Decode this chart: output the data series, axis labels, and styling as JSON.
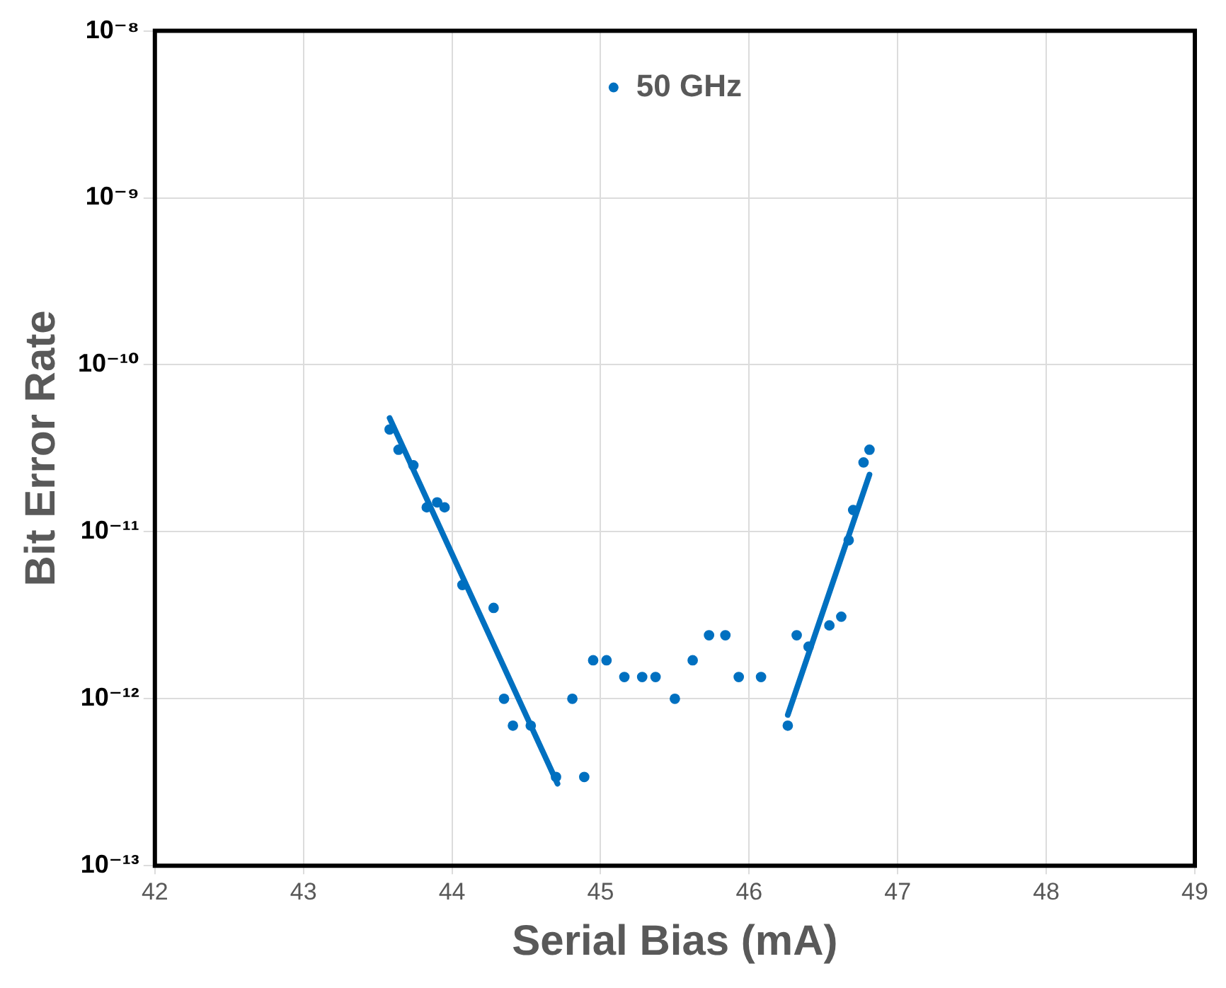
{
  "chart_data": {
    "type": "scatter",
    "xlabel": "Serial Bias (mA)",
    "ylabel": "Bit Error Rate",
    "log": "y",
    "grid": true,
    "legend": "top",
    "marker": "circle",
    "xlim": [
      42,
      49
    ],
    "xticks": [
      42,
      43,
      44,
      45,
      46,
      47,
      48,
      49
    ],
    "ylim": [
      1e-13,
      1e-08
    ],
    "yticks": [
      {
        "value": 1e-13,
        "label": "10⁻¹³"
      },
      {
        "value": 1e-12,
        "label": "10⁻¹²"
      },
      {
        "value": 1e-11,
        "label": "10⁻¹¹"
      },
      {
        "value": 1e-10,
        "label": "10⁻¹⁰"
      },
      {
        "value": 1e-09,
        "label": "10⁻⁹"
      },
      {
        "value": 1e-08,
        "label": "10⁻⁸"
      }
    ],
    "series": [
      {
        "name": "50 GHz",
        "color": "#0070c0",
        "x": [
          43.58,
          43.64,
          43.74,
          43.83,
          43.9,
          43.95,
          44.07,
          44.28,
          44.35,
          44.41,
          44.53,
          44.7,
          44.81,
          44.89,
          44.95,
          45.04,
          45.16,
          45.28,
          45.37,
          45.5,
          45.62,
          45.73,
          45.84,
          45.93,
          46.08,
          46.26,
          46.32,
          46.4,
          46.54,
          46.62,
          46.67,
          46.7,
          46.77,
          46.81
        ],
        "values": [
          4.1e-11,
          3.1e-11,
          2.5e-11,
          1.4e-11,
          1.5e-11,
          1.4e-11,
          4.8e-12,
          3.5e-12,
          1e-12,
          6.9e-13,
          6.9e-13,
          3.4e-13,
          1e-12,
          3.4e-13,
          1.7e-12,
          1.7e-12,
          1.35e-12,
          1.35e-12,
          1.35e-12,
          1e-12,
          1.7e-12,
          2.4e-12,
          2.4e-12,
          1.35e-12,
          1.35e-12,
          6.9e-13,
          2.4e-12,
          2.05e-12,
          2.75e-12,
          3.1e-12,
          8.9e-12,
          1.35e-11,
          2.6e-11,
          3.1e-11
        ]
      },
      {
        "type": "line",
        "marker": "none",
        "color": "#0070c0",
        "x": [
          43.58,
          44.71
        ],
        "values": [
          4.8e-11,
          3.1e-13
        ]
      },
      {
        "type": "line",
        "marker": "none",
        "color": "#0070c0",
        "x": [
          46.26,
          46.81
        ],
        "values": [
          8e-13,
          2.2e-11
        ]
      }
    ]
  }
}
